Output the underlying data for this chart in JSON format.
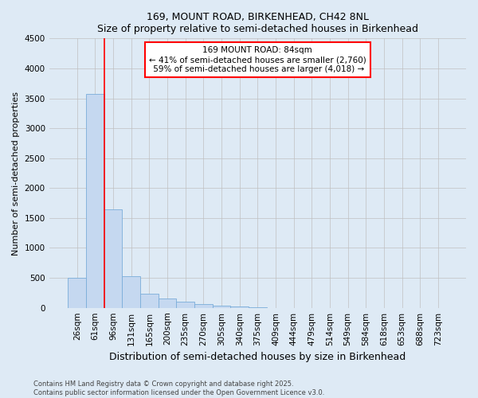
{
  "title1": "169, MOUNT ROAD, BIRKENHEAD, CH42 8NL",
  "title2": "Size of property relative to semi-detached houses in Birkenhead",
  "xlabel": "Distribution of semi-detached houses by size in Birkenhead",
  "ylabel": "Number of semi-detached properties",
  "categories": [
    "26sqm",
    "61sqm",
    "96sqm",
    "131sqm",
    "165sqm",
    "200sqm",
    "235sqm",
    "270sqm",
    "305sqm",
    "340sqm",
    "375sqm",
    "409sqm",
    "444sqm",
    "479sqm",
    "514sqm",
    "549sqm",
    "584sqm",
    "618sqm",
    "653sqm",
    "688sqm",
    "723sqm"
  ],
  "values": [
    500,
    3580,
    1650,
    530,
    240,
    160,
    100,
    60,
    30,
    20,
    5,
    0,
    0,
    0,
    0,
    0,
    0,
    0,
    0,
    0,
    0
  ],
  "bar_color": "#c5d8f0",
  "bar_edge_color": "#7aadda",
  "vline_x_index": 1,
  "vline_color": "red",
  "annotation_line1": "169 MOUNT ROAD: 84sqm",
  "annotation_line2": "← 41% of semi-detached houses are smaller (2,760)",
  "annotation_line3": " 59% of semi-detached houses are larger (4,018) →",
  "ylim": [
    0,
    4500
  ],
  "yticks": [
    0,
    500,
    1000,
    1500,
    2000,
    2500,
    3000,
    3500,
    4000,
    4500
  ],
  "footnote": "Contains HM Land Registry data © Crown copyright and database right 2025.\nContains public sector information licensed under the Open Government Licence v3.0.",
  "bg_color": "#deeaf5",
  "plot_bg_color": "#deeaf5",
  "grid_color": "#c0c0c0",
  "title_fontsize": 9,
  "tick_fontsize": 7.5,
  "ylabel_fontsize": 8,
  "xlabel_fontsize": 9
}
